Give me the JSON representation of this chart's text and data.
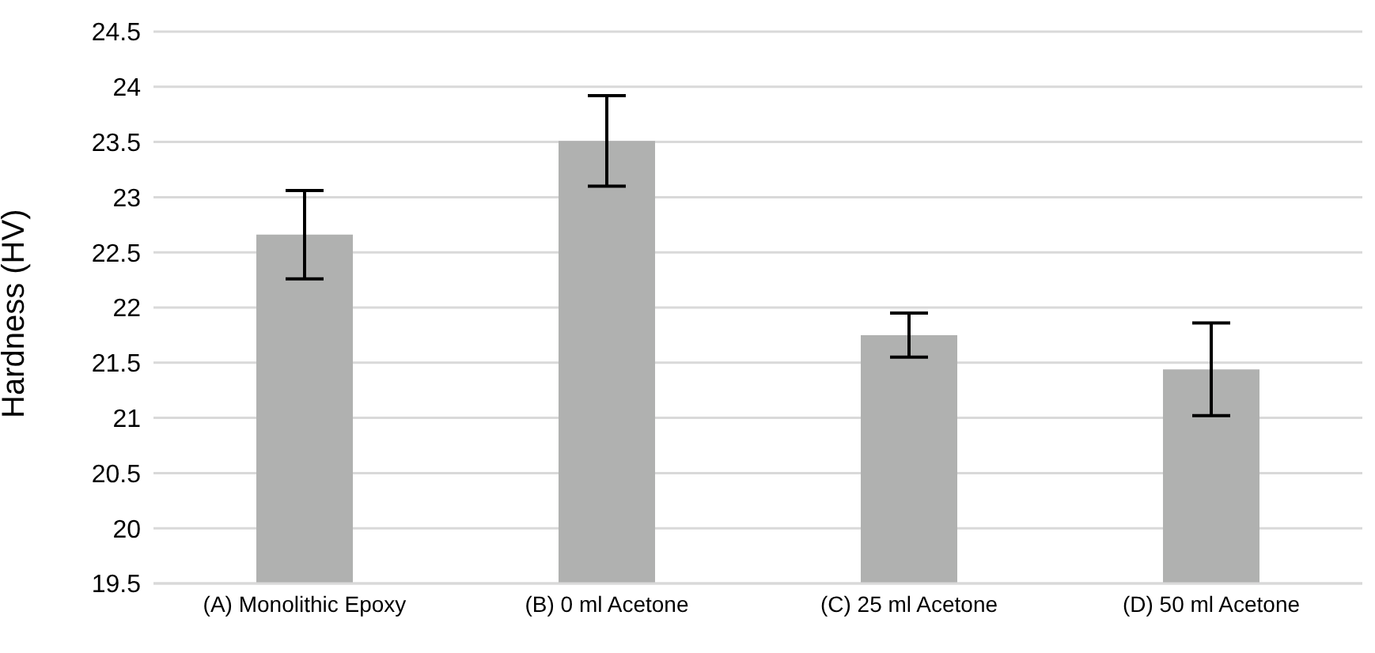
{
  "chart_data": {
    "type": "bar",
    "ylabel": "Hardness (HV)",
    "categories": [
      "(A) Monolithic Epoxy",
      "(B) 0 ml Acetone",
      "(C) 25 ml Acetone",
      "(D) 50 ml Acetone"
    ],
    "values": [
      22.66,
      23.51,
      21.75,
      21.44
    ],
    "errors": [
      0.4,
      0.41,
      0.2,
      0.42
    ],
    "color": "#b0b1b0",
    "ylim": [
      19.5,
      24.5
    ],
    "yticks": [
      19.5,
      20,
      20.5,
      21,
      21.5,
      22,
      22.5,
      23,
      23.5,
      24,
      24.5
    ],
    "grid": "y",
    "legend": false
  }
}
